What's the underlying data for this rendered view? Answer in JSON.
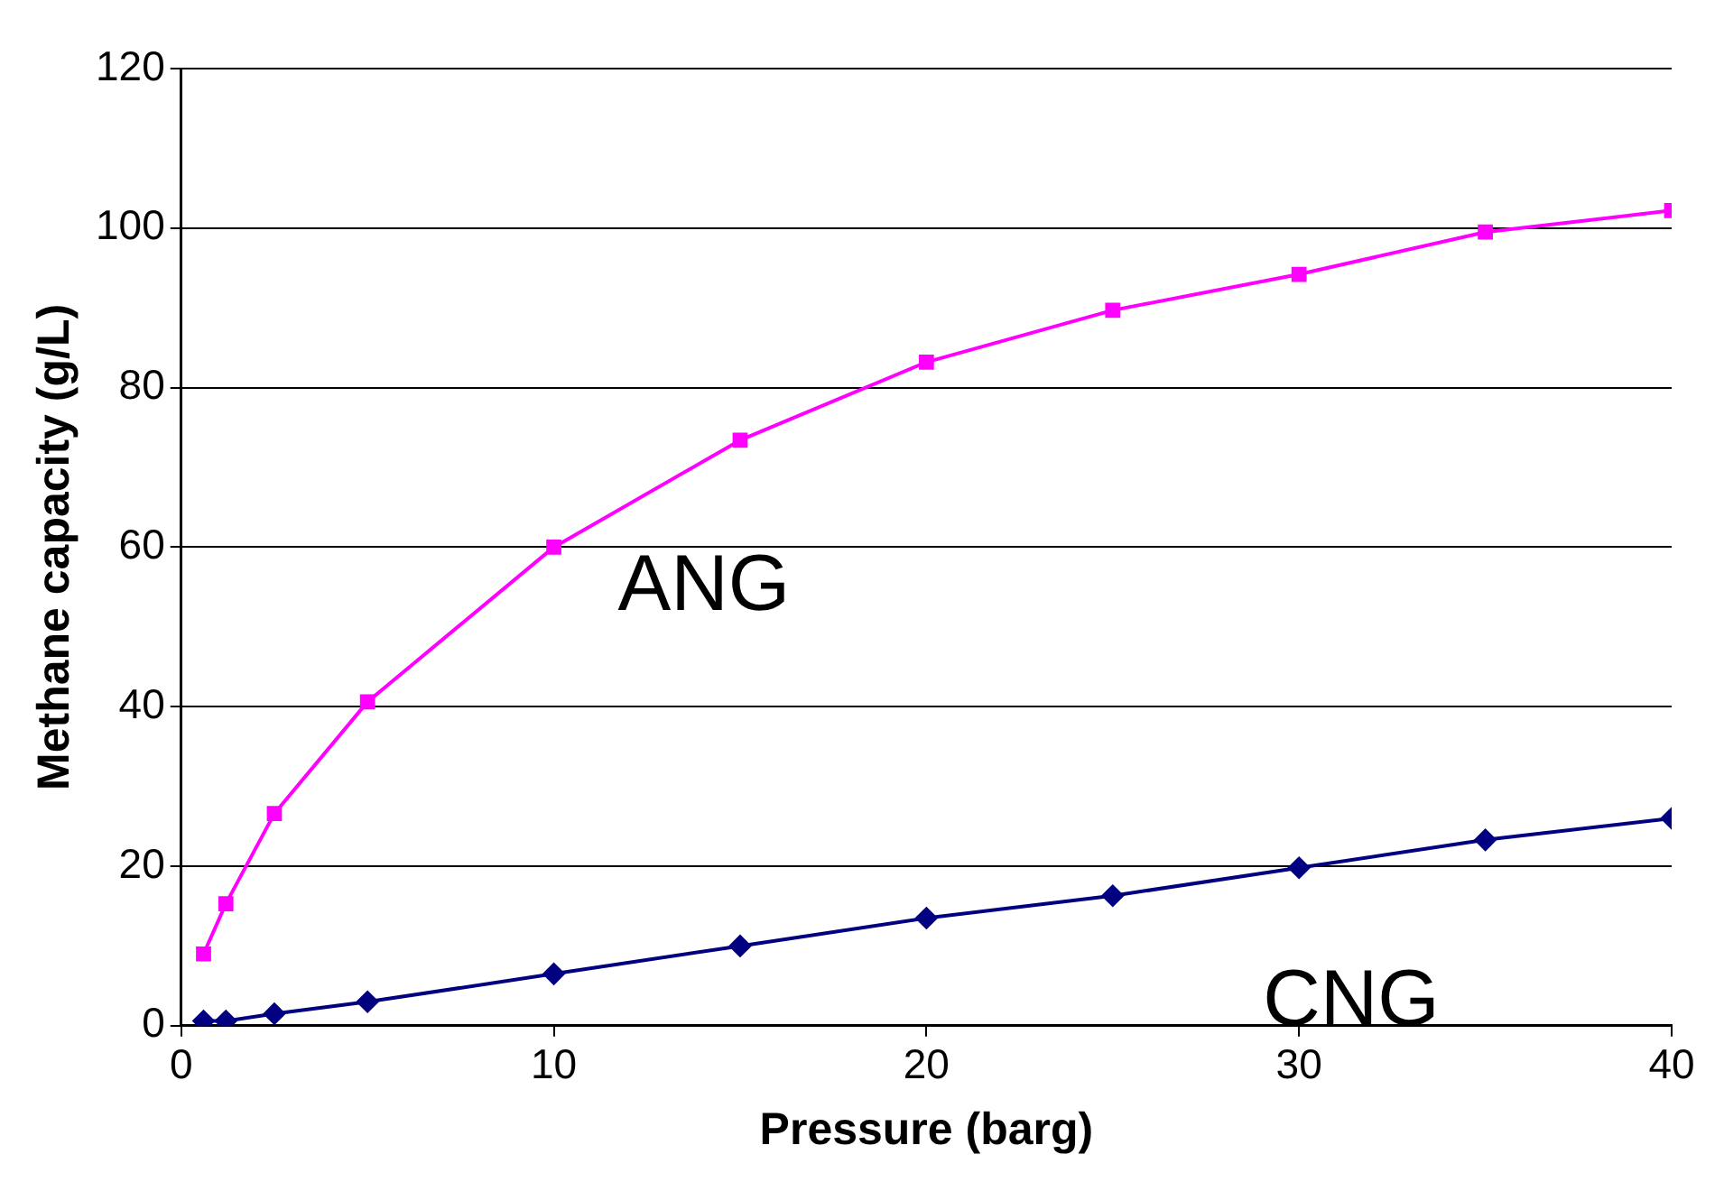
{
  "chart_data": {
    "type": "line",
    "xlabel": "Pressure (barg)",
    "ylabel": "Methane capacity (g/L)",
    "xlim": [
      0,
      40
    ],
    "xticks": [
      0,
      10,
      20,
      30,
      40
    ],
    "ylim": [
      0,
      120
    ],
    "yticks": [
      0,
      20,
      40,
      60,
      80,
      100,
      120
    ],
    "grid": "y",
    "legend": false,
    "series": [
      {
        "name": "ANG",
        "color": "#ff00ff",
        "marker": "square",
        "x": [
          0.6,
          1.2,
          2.5,
          5,
          10,
          15,
          20,
          25,
          30,
          35,
          40
        ],
        "values": [
          9,
          15.3,
          26.6,
          40.6,
          60,
          73.4,
          83.2,
          89.7,
          94.2,
          99.5,
          102.2
        ]
      },
      {
        "name": "CNG",
        "color": "#000080",
        "marker": "diamond",
        "x": [
          0.6,
          1.2,
          2.5,
          5,
          10,
          15,
          20,
          25,
          30,
          35,
          40
        ],
        "values": [
          0.6,
          0.6,
          1.5,
          3,
          6.5,
          10,
          13.5,
          16.3,
          19.8,
          23.3,
          26
        ]
      }
    ]
  }
}
